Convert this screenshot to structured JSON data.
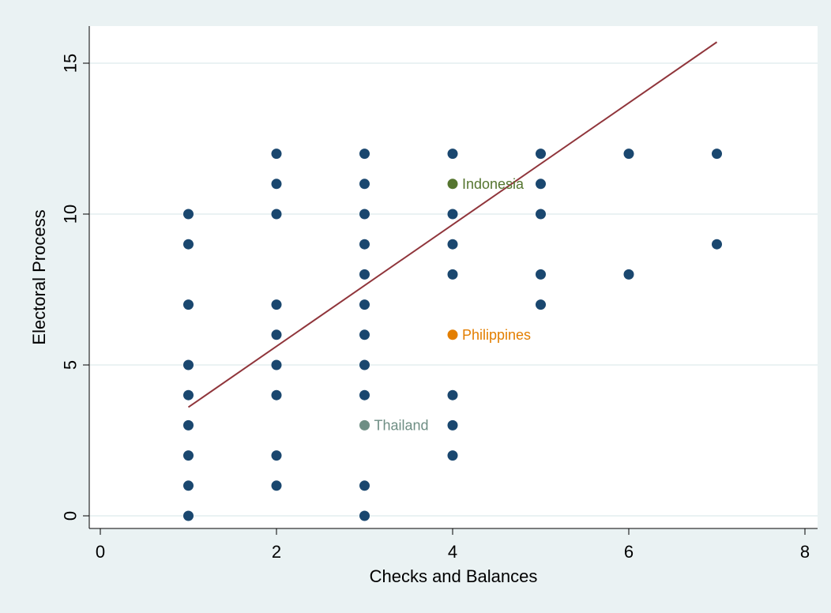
{
  "chart_data": {
    "type": "scatter",
    "title": "",
    "xlabel": "Checks and Balances",
    "ylabel": "Electoral Process",
    "xlim": [
      0,
      8
    ],
    "ylim": [
      -0.5,
      16
    ],
    "x_ticks": [
      0,
      2,
      4,
      6,
      8
    ],
    "y_ticks": [
      0,
      5,
      10,
      15
    ],
    "grid": "horizontal",
    "legend": "none",
    "colors": {
      "background": "#eaf2f3",
      "plot_background": "#ffffff",
      "grid": "#eaf2f3",
      "points": "#1a476f",
      "fit_line": "#90353b",
      "indonesia": "#55752f",
      "philippines": "#e37e00",
      "thailand": "#6e8e84"
    },
    "points": [
      {
        "x": 1,
        "y": 10
      },
      {
        "x": 1,
        "y": 9
      },
      {
        "x": 1,
        "y": 7
      },
      {
        "x": 1,
        "y": 5
      },
      {
        "x": 1,
        "y": 4
      },
      {
        "x": 1,
        "y": 3
      },
      {
        "x": 1,
        "y": 2
      },
      {
        "x": 1,
        "y": 1
      },
      {
        "x": 1,
        "y": 0
      },
      {
        "x": 2,
        "y": 12
      },
      {
        "x": 2,
        "y": 11
      },
      {
        "x": 2,
        "y": 10
      },
      {
        "x": 2,
        "y": 7
      },
      {
        "x": 2,
        "y": 6
      },
      {
        "x": 2,
        "y": 5
      },
      {
        "x": 2,
        "y": 4
      },
      {
        "x": 2,
        "y": 2
      },
      {
        "x": 2,
        "y": 1
      },
      {
        "x": 3,
        "y": 12
      },
      {
        "x": 3,
        "y": 11
      },
      {
        "x": 3,
        "y": 10
      },
      {
        "x": 3,
        "y": 9
      },
      {
        "x": 3,
        "y": 8
      },
      {
        "x": 3,
        "y": 7
      },
      {
        "x": 3,
        "y": 6
      },
      {
        "x": 3,
        "y": 5
      },
      {
        "x": 3,
        "y": 4
      },
      {
        "x": 3,
        "y": 1
      },
      {
        "x": 3,
        "y": 0
      },
      {
        "x": 4,
        "y": 12
      },
      {
        "x": 4,
        "y": 10
      },
      {
        "x": 4,
        "y": 9
      },
      {
        "x": 4,
        "y": 8
      },
      {
        "x": 4,
        "y": 4
      },
      {
        "x": 4,
        "y": 3
      },
      {
        "x": 4,
        "y": 2
      },
      {
        "x": 5,
        "y": 12
      },
      {
        "x": 5,
        "y": 11
      },
      {
        "x": 5,
        "y": 10
      },
      {
        "x": 5,
        "y": 8
      },
      {
        "x": 5,
        "y": 7
      },
      {
        "x": 6,
        "y": 12
      },
      {
        "x": 6,
        "y": 8
      },
      {
        "x": 7,
        "y": 12
      },
      {
        "x": 7,
        "y": 9
      }
    ],
    "highlighted": [
      {
        "label": "Indonesia",
        "x": 4,
        "y": 11,
        "color": "#55752f"
      },
      {
        "label": "Philippines",
        "x": 4,
        "y": 6,
        "color": "#e37e00"
      },
      {
        "label": "Thailand",
        "x": 3,
        "y": 3,
        "color": "#6e8e84"
      }
    ],
    "fit_line": {
      "x": [
        1,
        7
      ],
      "y": [
        3.6,
        15.7
      ]
    }
  }
}
